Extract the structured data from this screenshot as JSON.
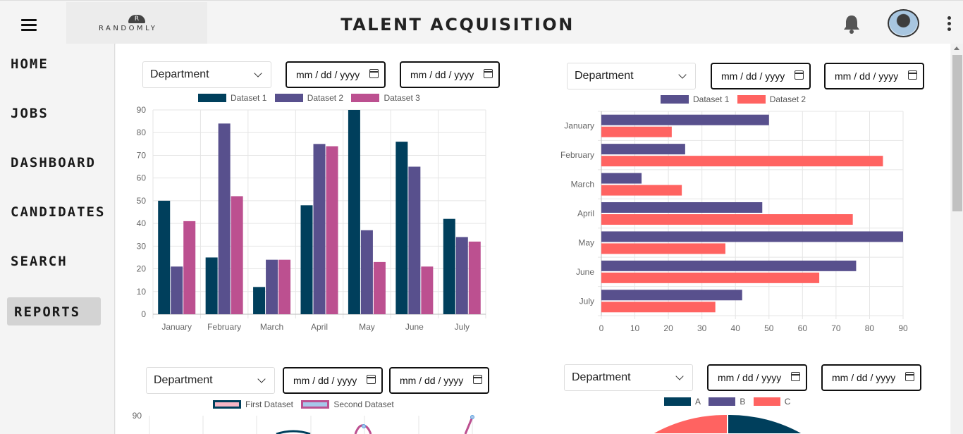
{
  "header": {
    "title": "TALENT ACQUISITION",
    "logo_text": "RANDOMLY",
    "logo_mark": "R",
    "menu_icon": "hamburger-icon",
    "bell_icon": "bell-icon",
    "more_icon": "kebab-icon"
  },
  "sidebar": {
    "items": [
      {
        "label": "HOME",
        "active": false
      },
      {
        "label": "JOBS",
        "active": false
      },
      {
        "label": "DASHBOARD",
        "active": false
      },
      {
        "label": "CANDIDATES",
        "active": false
      },
      {
        "label": "SEARCH",
        "active": false
      },
      {
        "label": "REPORTS",
        "active": true
      }
    ]
  },
  "filters": {
    "select_label": "Department",
    "date_placeholder": "mm / dd / yyyy"
  },
  "colors": {
    "d1": "#003f5c",
    "d2": "#58508d",
    "d3": "#bc5090",
    "coral": "#ff6361"
  },
  "chart_data": [
    {
      "type": "bar",
      "categories": [
        "January",
        "February",
        "March",
        "April",
        "May",
        "June",
        "July"
      ],
      "series": [
        {
          "name": "Dataset 1",
          "values": [
            50,
            25,
            12,
            48,
            90,
            76,
            42
          ]
        },
        {
          "name": "Dataset 2",
          "values": [
            21,
            84,
            24,
            75,
            37,
            65,
            34
          ]
        },
        {
          "name": "Dataset 3",
          "values": [
            41,
            52,
            24,
            74,
            23,
            21,
            32
          ]
        }
      ],
      "ylim": [
        0,
        90
      ],
      "yticks": [
        "0",
        "10",
        "20",
        "30",
        "40",
        "50",
        "60",
        "70",
        "80",
        "90"
      ],
      "grid": true,
      "legend": "top"
    },
    {
      "type": "bar",
      "orientation": "horizontal",
      "categories": [
        "January",
        "February",
        "March",
        "April",
        "May",
        "June",
        "July"
      ],
      "series": [
        {
          "name": "Dataset 1",
          "values": [
            50,
            25,
            12,
            48,
            90,
            76,
            42
          ]
        },
        {
          "name": "Dataset 2",
          "values": [
            21,
            84,
            24,
            75,
            37,
            65,
            34
          ]
        }
      ],
      "xlim": [
        0,
        90
      ],
      "xticks": [
        "0",
        "10",
        "20",
        "30",
        "40",
        "50",
        "60",
        "70",
        "80",
        "90"
      ],
      "grid": true,
      "legend": "top"
    },
    {
      "type": "line",
      "series": [
        {
          "name": "First Dataset"
        },
        {
          "name": "Second Dataset"
        }
      ],
      "yticks": [
        "90"
      ],
      "legend": "top"
    },
    {
      "type": "pie",
      "labels": [
        "A",
        "B",
        "C"
      ],
      "legend": "top"
    }
  ]
}
